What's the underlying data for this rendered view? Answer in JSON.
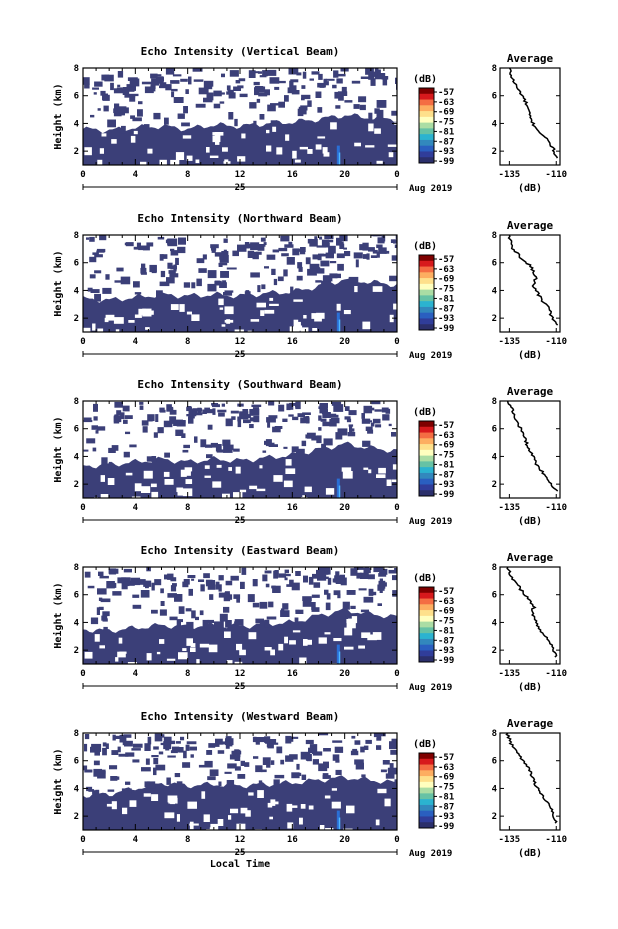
{
  "figure": {
    "xlabel": "Local Time",
    "date_label": "Aug 2019",
    "day_label": "25",
    "colorbar_unit": "(dB)",
    "colorbar_ticks": [
      "-57",
      "-63",
      "-69",
      "-75",
      "-81",
      "-87",
      "-93",
      "-99"
    ],
    "colorbar_colors": [
      "#7f0000",
      "#d7191c",
      "#f46d43",
      "#fdae61",
      "#fee08b",
      "#ffffbf",
      "#abdda4",
      "#66c2a5",
      "#2bb3d0",
      "#3288bd",
      "#2a5fc0",
      "#303d9a",
      "#2b2f6b"
    ],
    "data_fill_color": "#3b3f78"
  },
  "chart_data": [
    {
      "type": "heatmap",
      "title": "Echo Intensity (Vertical Beam)",
      "ylabel": "Height (km)",
      "xlabel": "",
      "x_ticks": [
        "0",
        "4",
        "8",
        "12",
        "16",
        "20",
        "0"
      ],
      "y_ticks": [
        "2",
        "4",
        "6",
        "8"
      ],
      "xlim": [
        0,
        24
      ],
      "ylim": [
        1,
        8
      ],
      "echo_top_km": [
        [
          0,
          3.6
        ],
        [
          2,
          3.5
        ],
        [
          4,
          3.7
        ],
        [
          6,
          3.8
        ],
        [
          8,
          3.6
        ],
        [
          10,
          3.9
        ],
        [
          12,
          3.8
        ],
        [
          14,
          4.0
        ],
        [
          16,
          4.1
        ],
        [
          18,
          4.3
        ],
        [
          20,
          4.6
        ],
        [
          22,
          4.4
        ],
        [
          24,
          4.3
        ]
      ],
      "profile": {
        "title": "Average",
        "xlabel": "(dB)",
        "x_ticks": [
          "-135",
          "-110"
        ],
        "y_ticks": [
          "2",
          "4",
          "6",
          "8"
        ],
        "xlim": [
          -140,
          -108
        ],
        "ylim": [
          1,
          8
        ],
        "points": [
          [
            -135,
            8.0
          ],
          [
            -134,
            7.4
          ],
          [
            -131,
            6.6
          ],
          [
            -128,
            6.0
          ],
          [
            -126,
            5.4
          ],
          [
            -125,
            5.0
          ],
          [
            -124,
            4.4
          ],
          [
            -122,
            3.9
          ],
          [
            -119,
            3.4
          ],
          [
            -116,
            3.0
          ],
          [
            -113,
            2.5
          ],
          [
            -111,
            2.0
          ],
          [
            -110,
            1.5
          ]
        ]
      }
    },
    {
      "type": "heatmap",
      "title": "Echo Intensity (Northward Beam)",
      "ylabel": "Height (km)",
      "xlabel": "",
      "x_ticks": [
        "0",
        "4",
        "8",
        "12",
        "16",
        "20",
        "0"
      ],
      "y_ticks": [
        "2",
        "4",
        "6",
        "8"
      ],
      "xlim": [
        0,
        24
      ],
      "ylim": [
        1,
        8
      ],
      "echo_top_km": [
        [
          0,
          3.4
        ],
        [
          2,
          3.3
        ],
        [
          4,
          3.5
        ],
        [
          6,
          3.7
        ],
        [
          8,
          3.6
        ],
        [
          10,
          3.7
        ],
        [
          12,
          3.6
        ],
        [
          14,
          3.8
        ],
        [
          16,
          3.9
        ],
        [
          18,
          4.3
        ],
        [
          20,
          4.8
        ],
        [
          22,
          4.6
        ],
        [
          24,
          4.4
        ]
      ],
      "profile": {
        "title": "Average",
        "xlabel": "(dB)",
        "x_ticks": [
          "-135",
          "-110"
        ],
        "y_ticks": [
          "2",
          "4",
          "6",
          "8"
        ],
        "xlim": [
          -140,
          -108
        ],
        "ylim": [
          1,
          8
        ],
        "points": [
          [
            -135,
            8.0
          ],
          [
            -134,
            7.2
          ],
          [
            -131,
            6.7
          ],
          [
            -128,
            6.2
          ],
          [
            -124,
            5.8
          ],
          [
            -122,
            5.3
          ],
          [
            -121,
            4.9
          ],
          [
            -122,
            4.3
          ],
          [
            -120,
            3.8
          ],
          [
            -117,
            3.2
          ],
          [
            -114,
            2.7
          ],
          [
            -112,
            2.0
          ],
          [
            -110,
            1.5
          ]
        ]
      }
    },
    {
      "type": "heatmap",
      "title": "Echo Intensity (Southward Beam)",
      "ylabel": "Height (km)",
      "xlabel": "",
      "x_ticks": [
        "0",
        "4",
        "8",
        "12",
        "16",
        "20",
        "0"
      ],
      "y_ticks": [
        "2",
        "4",
        "6",
        "8"
      ],
      "xlim": [
        0,
        24
      ],
      "ylim": [
        1,
        8
      ],
      "echo_top_km": [
        [
          0,
          3.3
        ],
        [
          2,
          3.4
        ],
        [
          4,
          3.6
        ],
        [
          6,
          3.8
        ],
        [
          8,
          3.6
        ],
        [
          10,
          3.8
        ],
        [
          12,
          3.7
        ],
        [
          14,
          3.9
        ],
        [
          16,
          4.1
        ],
        [
          18,
          4.5
        ],
        [
          20,
          4.9
        ],
        [
          22,
          4.6
        ],
        [
          24,
          4.4
        ]
      ],
      "profile": {
        "title": "Average",
        "xlabel": "(dB)",
        "x_ticks": [
          "-135",
          "-110"
        ],
        "y_ticks": [
          "2",
          "4",
          "6",
          "8"
        ],
        "xlim": [
          -140,
          -108
        ],
        "ylim": [
          1,
          8
        ],
        "points": [
          [
            -136,
            8.0
          ],
          [
            -134,
            7.5
          ],
          [
            -132,
            6.8
          ],
          [
            -130,
            6.3
          ],
          [
            -128,
            5.7
          ],
          [
            -126,
            5.0
          ],
          [
            -124,
            4.4
          ],
          [
            -122,
            3.9
          ],
          [
            -120,
            3.3
          ],
          [
            -117,
            2.8
          ],
          [
            -114,
            2.3
          ],
          [
            -111,
            1.7
          ],
          [
            -110,
            1.5
          ]
        ]
      }
    },
    {
      "type": "heatmap",
      "title": "Echo Intensity (Eastward Beam)",
      "ylabel": "Height (km)",
      "xlabel": "",
      "x_ticks": [
        "0",
        "4",
        "8",
        "12",
        "16",
        "20",
        "0"
      ],
      "y_ticks": [
        "2",
        "4",
        "6",
        "8"
      ],
      "xlim": [
        0,
        24
      ],
      "ylim": [
        1,
        8
      ],
      "echo_top_km": [
        [
          0,
          3.5
        ],
        [
          2,
          3.4
        ],
        [
          4,
          3.6
        ],
        [
          6,
          3.8
        ],
        [
          8,
          3.7
        ],
        [
          10,
          3.8
        ],
        [
          12,
          3.7
        ],
        [
          14,
          3.9
        ],
        [
          16,
          4.0
        ],
        [
          18,
          4.5
        ],
        [
          20,
          4.9
        ],
        [
          22,
          4.6
        ],
        [
          24,
          4.4
        ]
      ],
      "profile": {
        "title": "Average",
        "xlabel": "(dB)",
        "x_ticks": [
          "-135",
          "-110"
        ],
        "y_ticks": [
          "2",
          "4",
          "6",
          "8"
        ],
        "xlim": [
          -140,
          -108
        ],
        "ylim": [
          1,
          8
        ],
        "points": [
          [
            -136,
            8.0
          ],
          [
            -134,
            7.3
          ],
          [
            -131,
            6.8
          ],
          [
            -128,
            6.2
          ],
          [
            -124,
            5.6
          ],
          [
            -122,
            5.1
          ],
          [
            -123,
            4.6
          ],
          [
            -121,
            4.1
          ],
          [
            -119,
            3.6
          ],
          [
            -116,
            3.0
          ],
          [
            -113,
            2.5
          ],
          [
            -111,
            1.9
          ],
          [
            -110,
            1.5
          ]
        ]
      }
    },
    {
      "type": "heatmap",
      "title": "Echo Intensity (Westward Beam)",
      "ylabel": "Height (km)",
      "xlabel": "Local Time",
      "x_ticks": [
        "0",
        "4",
        "8",
        "12",
        "16",
        "20",
        "0"
      ],
      "y_ticks": [
        "2",
        "4",
        "6",
        "8"
      ],
      "xlim": [
        0,
        24
      ],
      "ylim": [
        1,
        8
      ],
      "echo_top_km": [
        [
          0,
          3.5
        ],
        [
          2,
          3.6
        ],
        [
          4,
          4.0
        ],
        [
          6,
          4.4
        ],
        [
          8,
          4.2
        ],
        [
          10,
          4.3
        ],
        [
          12,
          4.2
        ],
        [
          14,
          4.3
        ],
        [
          16,
          4.4
        ],
        [
          18,
          4.6
        ],
        [
          20,
          4.8
        ],
        [
          22,
          4.6
        ],
        [
          24,
          4.4
        ]
      ],
      "profile": {
        "title": "Average",
        "xlabel": "(dB)",
        "x_ticks": [
          "-135",
          "-110"
        ],
        "y_ticks": [
          "2",
          "4",
          "6",
          "8"
        ],
        "xlim": [
          -140,
          -108
        ],
        "ylim": [
          1,
          8
        ],
        "points": [
          [
            -136,
            8.0
          ],
          [
            -134,
            7.2
          ],
          [
            -131,
            6.6
          ],
          [
            -128,
            6.1
          ],
          [
            -125,
            5.5
          ],
          [
            -123,
            4.9
          ],
          [
            -121,
            4.3
          ],
          [
            -119,
            3.8
          ],
          [
            -116,
            3.2
          ],
          [
            -113,
            2.6
          ],
          [
            -111,
            2.0
          ],
          [
            -110,
            1.5
          ]
        ]
      }
    }
  ]
}
